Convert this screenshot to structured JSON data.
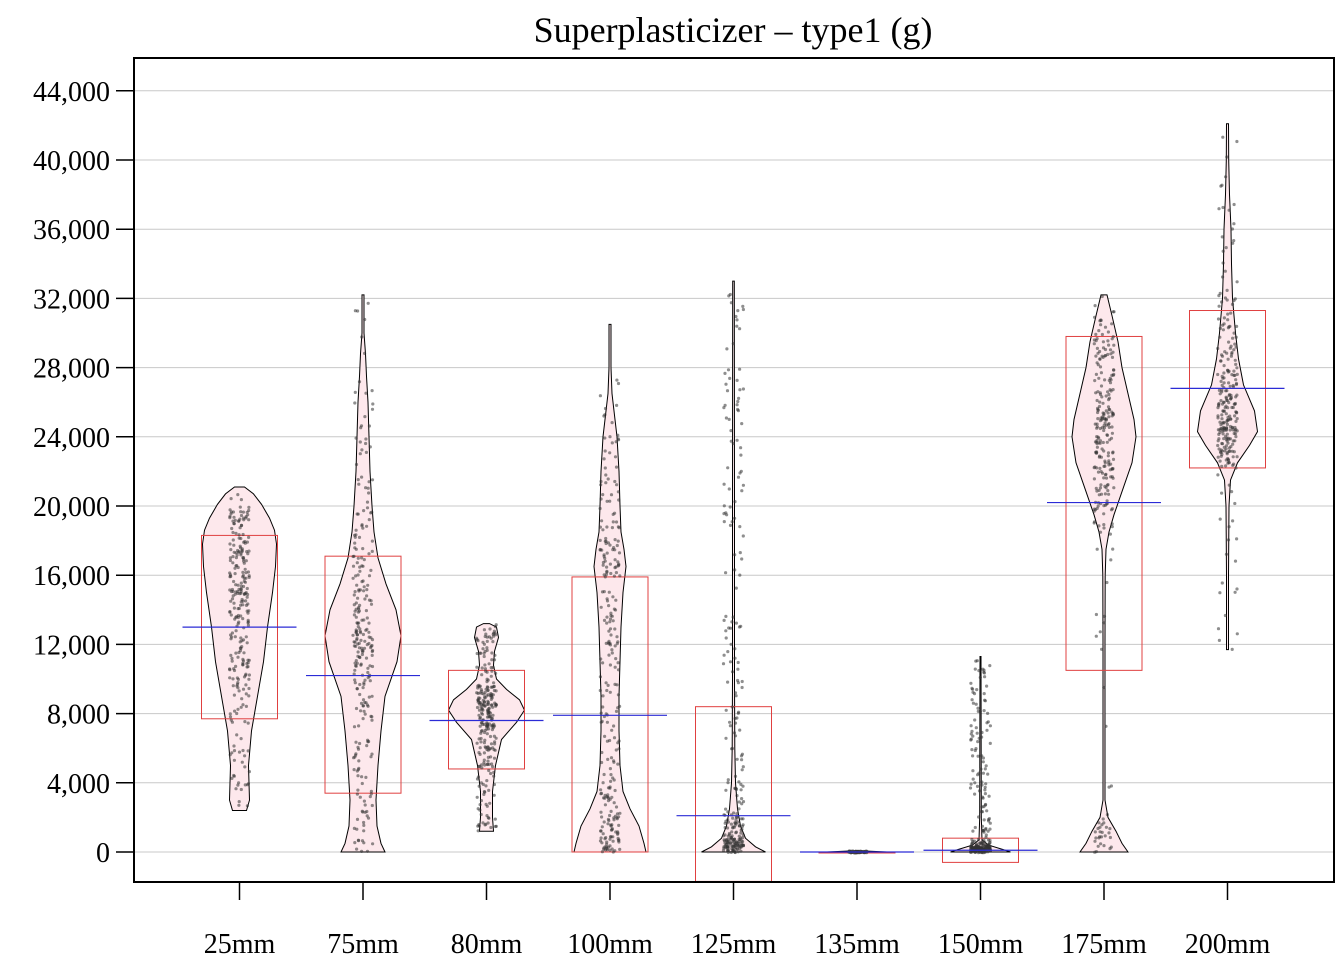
{
  "chart_data": {
    "type": "pirate",
    "title": "Superplasticizer – type1 (g)",
    "xlabel": "",
    "ylabel": "",
    "ylim": [
      -1700,
      45800
    ],
    "yticks": [
      0,
      4000,
      8000,
      12000,
      16000,
      20000,
      24000,
      28000,
      32000,
      36000,
      40000,
      44000
    ],
    "ytick_labels": [
      "0",
      "4,000",
      "8,000",
      "12,000",
      "16,000",
      "20,000",
      "24,000",
      "28,000",
      "32,000",
      "36,000",
      "40,000",
      "44,000"
    ],
    "grid": true,
    "colors": {
      "violin_fill": "#fde8ec",
      "violin_stroke": "#000000",
      "box_stroke": "#e04040",
      "mean_line": "#2b2bd6",
      "points": "#333333",
      "grid": "#c8c8c8"
    },
    "categories": [
      "25mm",
      "75mm",
      "80mm",
      "100mm",
      "125mm",
      "135mm",
      "150mm",
      "175mm",
      "200mm"
    ],
    "groups": [
      {
        "label": "25mm",
        "mean": 13000,
        "box_low": 7700,
        "box_high": 18300,
        "min": 2400,
        "max": 21100,
        "violin": [
          [
            2400,
            7
          ],
          [
            3000,
            10
          ],
          [
            5000,
            9
          ],
          [
            7000,
            12
          ],
          [
            9000,
            18
          ],
          [
            11000,
            24
          ],
          [
            13000,
            28
          ],
          [
            15000,
            33
          ],
          [
            16500,
            36
          ],
          [
            17800,
            37
          ],
          [
            18600,
            35
          ],
          [
            19300,
            30
          ],
          [
            20100,
            22
          ],
          [
            20700,
            14
          ],
          [
            21100,
            5
          ]
        ]
      },
      {
        "label": "75mm",
        "mean": 10200,
        "box_low": 3400,
        "box_high": 17100,
        "min": 0,
        "max": 32200,
        "violin": [
          [
            0,
            22
          ],
          [
            500,
            18
          ],
          [
            1500,
            14
          ],
          [
            3000,
            13
          ],
          [
            5000,
            15
          ],
          [
            7000,
            18
          ],
          [
            9000,
            22
          ],
          [
            11000,
            34
          ],
          [
            12500,
            38
          ],
          [
            14000,
            33
          ],
          [
            15500,
            23
          ],
          [
            17000,
            15
          ],
          [
            18500,
            11
          ],
          [
            20000,
            9
          ],
          [
            22000,
            7
          ],
          [
            24000,
            6
          ],
          [
            26000,
            5
          ],
          [
            27500,
            3.5
          ],
          [
            28800,
            2.5
          ],
          [
            30000,
            1
          ],
          [
            32200,
            1
          ]
        ]
      },
      {
        "label": "80mm",
        "mean": 7600,
        "box_low": 4800,
        "box_high": 10500,
        "min": 1200,
        "max": 13200,
        "violin": [
          [
            1200,
            7
          ],
          [
            2000,
            6
          ],
          [
            3500,
            6
          ],
          [
            5000,
            9
          ],
          [
            6500,
            15
          ],
          [
            7500,
            30
          ],
          [
            8200,
            38
          ],
          [
            8800,
            33
          ],
          [
            9400,
            20
          ],
          [
            10000,
            10
          ],
          [
            10800,
            7
          ],
          [
            11600,
            8
          ],
          [
            12400,
            12
          ],
          [
            13000,
            10
          ],
          [
            13200,
            3
          ]
        ]
      },
      {
        "label": "100mm",
        "mean": 7900,
        "box_low": 0,
        "box_high": 15900,
        "min": 0,
        "max": 30500,
        "violin": [
          [
            0,
            36
          ],
          [
            500,
            34
          ],
          [
            1500,
            29
          ],
          [
            2500,
            20
          ],
          [
            3500,
            13
          ],
          [
            5000,
            10
          ],
          [
            7000,
            9
          ],
          [
            9000,
            9
          ],
          [
            11000,
            10
          ],
          [
            13000,
            11
          ],
          [
            15000,
            13
          ],
          [
            16500,
            16
          ],
          [
            17500,
            14
          ],
          [
            18500,
            11
          ],
          [
            20000,
            10
          ],
          [
            22000,
            9
          ],
          [
            24000,
            7
          ],
          [
            25500,
            4
          ],
          [
            26500,
            2
          ],
          [
            28000,
            1
          ],
          [
            30500,
            1
          ]
        ]
      },
      {
        "label": "125mm",
        "mean": 2100,
        "box_low": -1700,
        "box_high": 8400,
        "min": 0,
        "max": 33000,
        "violin": [
          [
            0,
            32
          ],
          [
            300,
            22
          ],
          [
            800,
            12
          ],
          [
            1500,
            7
          ],
          [
            2500,
            4
          ],
          [
            4000,
            2
          ],
          [
            6000,
            1.3
          ],
          [
            10000,
            1
          ],
          [
            20000,
            1
          ],
          [
            33000,
            0.8
          ]
        ]
      },
      {
        "label": "135mm",
        "mean": 0,
        "box_low": 0,
        "box_high": 0,
        "min": 0,
        "max": 0,
        "violin": [
          [
            -80,
            0
          ],
          [
            0,
            30
          ],
          [
            80,
            0
          ]
        ]
      },
      {
        "label": "150mm",
        "mean": 100,
        "box_low": -600,
        "box_high": 800,
        "min": 0,
        "max": 11300,
        "violin": [
          [
            0,
            30
          ],
          [
            150,
            22
          ],
          [
            400,
            8
          ],
          [
            700,
            1.5
          ],
          [
            2000,
            0.8
          ],
          [
            11300,
            0.5
          ]
        ]
      },
      {
        "label": "175mm",
        "mean": 20200,
        "box_low": 10500,
        "box_high": 29800,
        "min": 0,
        "max": 32200,
        "violin": [
          [
            0,
            24
          ],
          [
            500,
            18
          ],
          [
            1200,
            12
          ],
          [
            2000,
            4
          ],
          [
            3000,
            1
          ],
          [
            8000,
            1
          ],
          [
            12000,
            1
          ],
          [
            16000,
            1.2
          ],
          [
            17500,
            2
          ],
          [
            18500,
            5
          ],
          [
            19500,
            10
          ],
          [
            21000,
            19
          ],
          [
            22500,
            28
          ],
          [
            24000,
            32
          ],
          [
            25000,
            30
          ],
          [
            26500,
            24
          ],
          [
            28000,
            18
          ],
          [
            29500,
            14
          ],
          [
            31000,
            8
          ],
          [
            32200,
            3
          ]
        ]
      },
      {
        "label": "200mm",
        "mean": 26800,
        "box_low": 22200,
        "box_high": 31300,
        "min": 11700,
        "max": 42100,
        "violin": [
          [
            11700,
            1
          ],
          [
            16000,
            1
          ],
          [
            20000,
            1.5
          ],
          [
            21500,
            3
          ],
          [
            22500,
            10
          ],
          [
            23500,
            22
          ],
          [
            24300,
            30
          ],
          [
            25500,
            27
          ],
          [
            27000,
            16
          ],
          [
            28500,
            11
          ],
          [
            30000,
            8
          ],
          [
            32000,
            5
          ],
          [
            34000,
            4
          ],
          [
            36000,
            3.5
          ],
          [
            38000,
            2
          ],
          [
            40000,
            1.2
          ],
          [
            42100,
            1
          ]
        ]
      }
    ]
  }
}
